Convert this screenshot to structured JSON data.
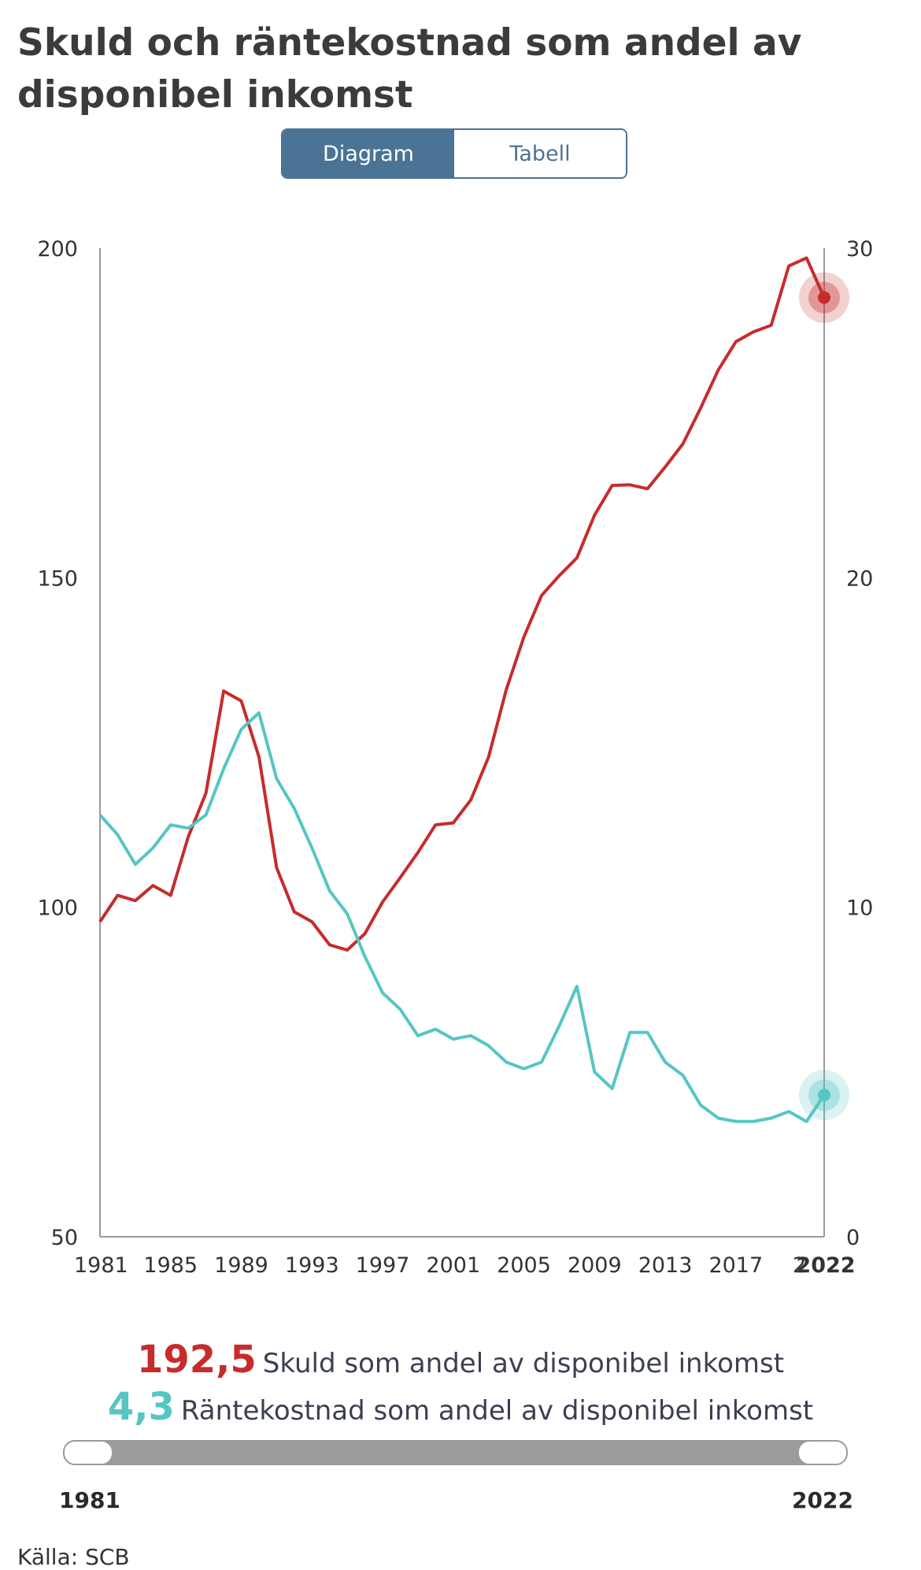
{
  "title": "Skuld och räntekostnad som andel av disponibel inkomst",
  "view_toggle": {
    "diagram": "Diagram",
    "table": "Tabell"
  },
  "chart_data": {
    "type": "line",
    "x": [
      1981,
      1982,
      1983,
      1984,
      1985,
      1986,
      1987,
      1988,
      1989,
      1990,
      1991,
      1992,
      1993,
      1994,
      1995,
      1996,
      1997,
      1998,
      1999,
      2000,
      2001,
      2002,
      2003,
      2004,
      2005,
      2006,
      2007,
      2008,
      2009,
      2010,
      2011,
      2012,
      2013,
      2014,
      2015,
      2016,
      2017,
      2018,
      2019,
      2020,
      2021,
      2022
    ],
    "x_tick_labels": [
      "1981",
      "1985",
      "1989",
      "1993",
      "1997",
      "2001",
      "2005",
      "2009",
      "2013",
      "2017",
      "2",
      "2022"
    ],
    "y_left_ticks": [
      "200",
      "150",
      "100",
      "50"
    ],
    "y_right_ticks": [
      "30",
      "20",
      "10",
      "0"
    ],
    "ylim_left": [
      50,
      200
    ],
    "ylim_right": [
      0,
      30
    ],
    "series": [
      {
        "axis": "left",
        "color": "#c62c2c",
        "values": [
          97.8,
          101.8,
          101.0,
          103.3,
          101.8,
          110.7,
          117.3,
          132.8,
          131.3,
          122.8,
          106.0,
          99.3,
          97.8,
          94.3,
          93.5,
          96.0,
          100.8,
          104.5,
          108.3,
          112.5,
          112.8,
          116.3,
          122.8,
          133.0,
          141.0,
          147.3,
          150.3,
          153.0,
          159.5,
          164.0,
          164.1,
          163.5,
          166.8,
          170.3,
          175.7,
          181.5,
          185.8,
          187.3,
          188.3,
          197.3,
          198.5,
          192.5
        ]
      },
      {
        "axis": "right",
        "color": "#56c6c4",
        "values": [
          12.8,
          12.2,
          11.3,
          11.8,
          12.5,
          12.4,
          12.8,
          14.2,
          15.4,
          15.9,
          13.9,
          13.0,
          11.8,
          10.5,
          9.8,
          8.5,
          7.4,
          6.9,
          6.1,
          6.3,
          6.0,
          6.1,
          5.8,
          5.3,
          5.1,
          5.3,
          6.4,
          7.6,
          5.0,
          4.5,
          6.2,
          6.2,
          5.3,
          4.9,
          4.0,
          3.6,
          3.5,
          3.5,
          3.6,
          3.8,
          3.5,
          4.3
        ]
      }
    ]
  },
  "readout": {
    "debt_value": "192,5",
    "debt_label": "Skuld som andel av disponibel inkomst",
    "interest_value": "4,3",
    "interest_label": "Räntekostnad som andel av disponibel inkomst"
  },
  "range": {
    "start": "1981",
    "end": "2022"
  },
  "source": "Källa: SCB"
}
